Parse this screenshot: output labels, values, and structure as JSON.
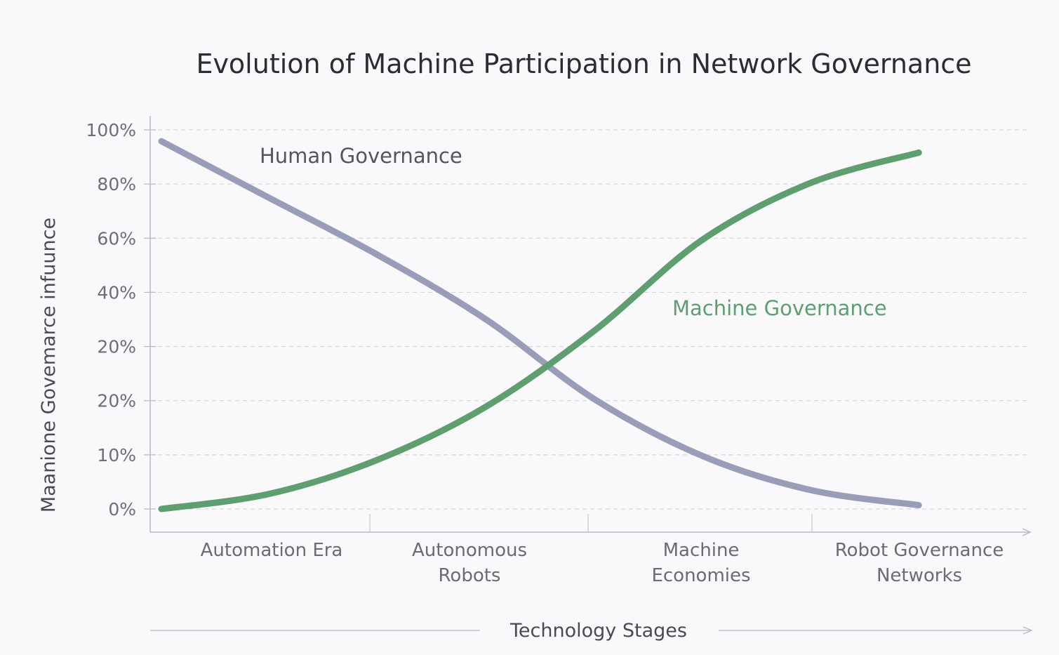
{
  "chart_data": {
    "type": "line",
    "title": "Evolution of Machine Participation in Network Governance",
    "xlabel": "Technology Stages",
    "ylabel": "Maanione Govemarce infuunce",
    "categories": [
      {
        "line1": "Automation Era",
        "line2": ""
      },
      {
        "line1": "Autonomous",
        "line2": "Robots"
      },
      {
        "line1": "Machine",
        "line2": "Economies"
      },
      {
        "line1": "Robot Governance",
        "line2": "Networks"
      }
    ],
    "y_tick_labels": [
      "0%",
      "10%",
      "20%",
      "20%",
      "40%",
      "60%",
      "80%",
      "100%"
    ],
    "ylim": [
      0,
      100
    ],
    "grid": true,
    "x_range": [
      0,
      3.6
    ],
    "series": [
      {
        "name": "Human Governance",
        "color": "#9a9db8",
        "x": [
          0,
          0.5,
          1,
          1.5,
          2,
          2.5,
          3,
          3.5
        ],
        "y": [
          97,
          82,
          67,
          50,
          29,
          14,
          5,
          1
        ]
      },
      {
        "name": "Machine Governance",
        "color": "#5f9e6e",
        "x": [
          0,
          0.5,
          1,
          1.5,
          2,
          2.5,
          3,
          3.5
        ],
        "y": [
          0,
          4,
          13,
          27,
          47,
          71,
          86,
          94
        ]
      }
    ]
  }
}
